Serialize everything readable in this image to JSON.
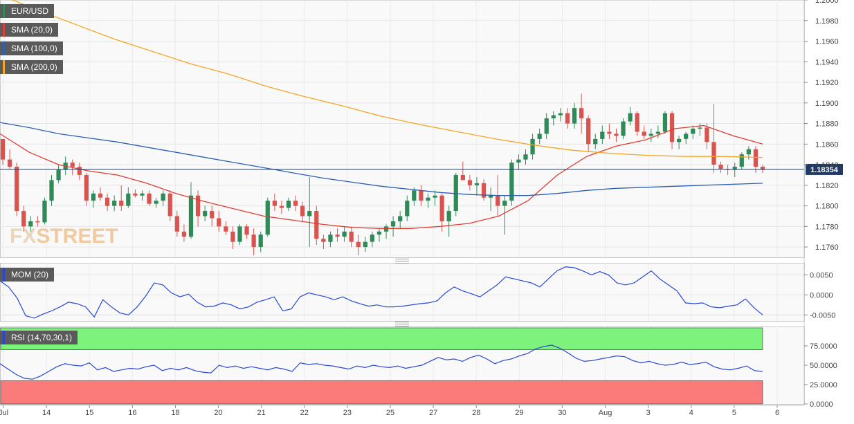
{
  "symbol": "EUR/USD",
  "current_price": "1.18354",
  "watermark": {
    "part1": "FX",
    "part2": "STREET"
  },
  "colors": {
    "sma20": "#e03c31",
    "sma100": "#2b5fb3",
    "sma200": "#f5a623",
    "candle_up": "#2e8b57",
    "candle_down": "#d9534f",
    "momentum": "#2747d6",
    "rsi_line": "#2747d6",
    "rsi_overbought_zone": "#7df27d",
    "rsi_oversold_zone": "#fb7a7a"
  },
  "legend": {
    "symbol_label": "EUR/USD",
    "sma20_label": "SMA (20,0)",
    "sma100_label": "SMA (100,0)",
    "sma200_label": "SMA (200,0)",
    "momentum_label": "MOM (20)",
    "rsi_label": "RSI (14,70,30,1)"
  },
  "price_axis": {
    "ticks": [
      "1.2000",
      "1.1980",
      "1.1960",
      "1.1940",
      "1.1920",
      "1.1900",
      "1.1880",
      "1.1860",
      "1.1840",
      "1.1820",
      "1.1800",
      "1.1780",
      "1.1760"
    ],
    "range": [
      1.175,
      1.2
    ]
  },
  "momentum_axis": {
    "ticks": [
      "0.0050",
      "0.0000",
      "-0.0050"
    ]
  },
  "rsi_axis": {
    "ticks": [
      "75.0000",
      "50.0000",
      "25.0000",
      "0.0000"
    ]
  },
  "date_axis": {
    "labels": [
      "Jul",
      "14",
      "15",
      "16",
      "18",
      "20",
      "21",
      "22",
      "23",
      "25",
      "27",
      "28",
      "29",
      "30",
      "Aug",
      "3",
      "4",
      "5",
      "6"
    ]
  },
  "chart_data": [
    {
      "type": "candlestick",
      "title": "EUR/USD",
      "ylim": [
        1.175,
        1.2
      ],
      "current_value": 1.18354,
      "series": [
        {
          "name": "SMA (20,0)",
          "values": [
            1.187,
            1.1852,
            1.184,
            1.1834,
            1.183,
            1.1822,
            1.1812,
            1.1804,
            1.1797,
            1.179,
            1.1786,
            1.1782,
            1.1779,
            1.1778,
            1.1778,
            1.178,
            1.1783,
            1.179,
            1.1805,
            1.183,
            1.1848,
            1.1858,
            1.1864,
            1.1875,
            1.1878,
            1.1868,
            1.186
          ]
        },
        {
          "name": "SMA (100,0)",
          "values": [
            1.1881,
            1.1876,
            1.187,
            1.1866,
            1.1862,
            1.1857,
            1.1852,
            1.1847,
            1.1842,
            1.1837,
            1.1832,
            1.1827,
            1.1823,
            1.1819,
            1.1816,
            1.1813,
            1.1811,
            1.181,
            1.181,
            1.1812,
            1.1815,
            1.1817,
            1.1818,
            1.1819,
            1.182,
            1.1821,
            1.1822
          ]
        },
        {
          "name": "SMA (200,0)",
          "values": [
            1.2005,
            1.199,
            1.1976,
            1.1962,
            1.195,
            1.1938,
            1.1928,
            1.1916,
            1.1906,
            1.1897,
            1.1887,
            1.1879,
            1.1872,
            1.1865,
            1.1859,
            1.1854,
            1.1851,
            1.1849,
            1.1848,
            1.1848,
            1.1847
          ]
        }
      ],
      "candles": [
        [
          1.1865,
          1.1865,
          1.184,
          1.1845
        ],
        [
          1.1845,
          1.1855,
          1.1835,
          1.1838
        ],
        [
          1.1838,
          1.1842,
          1.179,
          1.1795
        ],
        [
          1.1795,
          1.18,
          1.1775,
          1.178
        ],
        [
          1.178,
          1.179,
          1.1775,
          1.1785
        ],
        [
          1.1785,
          1.179,
          1.178,
          1.1784
        ],
        [
          1.1784,
          1.1808,
          1.1782,
          1.1805
        ],
        [
          1.1805,
          1.183,
          1.18,
          1.1825
        ],
        [
          1.1825,
          1.184,
          1.1822,
          1.1835
        ],
        [
          1.1835,
          1.1848,
          1.183,
          1.1842
        ],
        [
          1.1842,
          1.1845,
          1.183,
          1.1838
        ],
        [
          1.1838,
          1.1842,
          1.1825,
          1.183
        ],
        [
          1.183,
          1.1832,
          1.18,
          1.1805
        ],
        [
          1.1805,
          1.1815,
          1.1798,
          1.1812
        ],
        [
          1.1812,
          1.1818,
          1.1805,
          1.1808
        ],
        [
          1.1808,
          1.1812,
          1.1795,
          1.18
        ],
        [
          1.18,
          1.181,
          1.1795,
          1.1805
        ],
        [
          1.1805,
          1.182,
          1.1795,
          1.18
        ],
        [
          1.18,
          1.1818,
          1.1798,
          1.1812
        ],
        [
          1.1812,
          1.1816,
          1.1808,
          1.181
        ],
        [
          1.181,
          1.1815,
          1.1805,
          1.1812
        ],
        [
          1.1812,
          1.1815,
          1.18,
          1.1802
        ],
        [
          1.1802,
          1.1808,
          1.1798,
          1.1805
        ],
        [
          1.1805,
          1.1815,
          1.18,
          1.1812
        ],
        [
          1.1812,
          1.1815,
          1.1785,
          1.179
        ],
        [
          1.179,
          1.1795,
          1.177,
          1.1775
        ],
        [
          1.1775,
          1.1782,
          1.1765,
          1.177
        ],
        [
          1.177,
          1.1823,
          1.1768,
          1.181
        ],
        [
          1.181,
          1.1815,
          1.178,
          1.179
        ],
        [
          1.179,
          1.18,
          1.1785,
          1.1795
        ],
        [
          1.1795,
          1.18,
          1.178,
          1.1788
        ],
        [
          1.1788,
          1.1795,
          1.1775,
          1.178
        ],
        [
          1.178,
          1.1785,
          1.1772,
          1.1775
        ],
        [
          1.1775,
          1.178,
          1.1758,
          1.1765
        ],
        [
          1.1765,
          1.1782,
          1.1762,
          1.178
        ],
        [
          1.178,
          1.1782,
          1.1768,
          1.1772
        ],
        [
          1.1772,
          1.1778,
          1.1752,
          1.176
        ],
        [
          1.176,
          1.1775,
          1.1755,
          1.1772
        ],
        [
          1.1772,
          1.1808,
          1.177,
          1.1805
        ],
        [
          1.1805,
          1.1812,
          1.1795,
          1.18
        ],
        [
          1.18,
          1.1805,
          1.1792,
          1.1798
        ],
        [
          1.1798,
          1.1808,
          1.1795,
          1.1805
        ],
        [
          1.1805,
          1.181,
          1.1795,
          1.18
        ],
        [
          1.18,
          1.1804,
          1.1785,
          1.179
        ],
        [
          1.179,
          1.1828,
          1.176,
          1.1795
        ],
        [
          1.1795,
          1.18,
          1.1762,
          1.1768
        ],
        [
          1.1768,
          1.1772,
          1.1758,
          1.1765
        ],
        [
          1.1765,
          1.1775,
          1.176,
          1.1772
        ],
        [
          1.1772,
          1.1778,
          1.1765,
          1.177
        ],
        [
          1.177,
          1.178,
          1.1765,
          1.1775
        ],
        [
          1.1775,
          1.178,
          1.176,
          1.1765
        ],
        [
          1.1765,
          1.1772,
          1.1752,
          1.176
        ],
        [
          1.176,
          1.177,
          1.1755,
          1.1765
        ],
        [
          1.1765,
          1.1775,
          1.176,
          1.1772
        ],
        [
          1.1772,
          1.1778,
          1.1765,
          1.1775
        ],
        [
          1.1775,
          1.1782,
          1.1768,
          1.178
        ],
        [
          1.178,
          1.179,
          1.177,
          1.1785
        ],
        [
          1.1785,
          1.1795,
          1.1778,
          1.179
        ],
        [
          1.179,
          1.181,
          1.1785,
          1.1805
        ],
        [
          1.1805,
          1.1818,
          1.18,
          1.1815
        ],
        [
          1.1815,
          1.182,
          1.18,
          1.1805
        ],
        [
          1.1805,
          1.1812,
          1.1798,
          1.1808
        ],
        [
          1.1808,
          1.1815,
          1.18,
          1.181
        ],
        [
          1.181,
          1.1812,
          1.1775,
          1.1785
        ],
        [
          1.1785,
          1.18,
          1.177,
          1.1795
        ],
        [
          1.1795,
          1.1832,
          1.179,
          1.183
        ],
        [
          1.183,
          1.1843,
          1.1825,
          1.1825
        ],
        [
          1.1825,
          1.183,
          1.1815,
          1.182
        ],
        [
          1.182,
          1.1828,
          1.181,
          1.1822
        ],
        [
          1.1822,
          1.1826,
          1.1805,
          1.1808
        ],
        [
          1.1808,
          1.1818,
          1.1795,
          1.181
        ],
        [
          1.181,
          1.183,
          1.179,
          1.18
        ],
        [
          1.18,
          1.181,
          1.1772,
          1.1805
        ],
        [
          1.1805,
          1.1845,
          1.18,
          1.1842
        ],
        [
          1.1842,
          1.185,
          1.1835,
          1.1845
        ],
        [
          1.1845,
          1.1855,
          1.184,
          1.185
        ],
        [
          1.185,
          1.187,
          1.1845,
          1.1865
        ],
        [
          1.1865,
          1.1875,
          1.186,
          1.187
        ],
        [
          1.187,
          1.189,
          1.1865,
          1.1885
        ],
        [
          1.1885,
          1.1892,
          1.1878,
          1.1888
        ],
        [
          1.1888,
          1.1895,
          1.1882,
          1.189
        ],
        [
          1.189,
          1.1895,
          1.1875,
          1.188
        ],
        [
          1.188,
          1.19,
          1.1875,
          1.1895
        ],
        [
          1.1895,
          1.1909,
          1.187,
          1.1885
        ],
        [
          1.1885,
          1.1888,
          1.1852,
          1.186
        ],
        [
          1.186,
          1.187,
          1.1855,
          1.1865
        ],
        [
          1.1865,
          1.1878,
          1.186,
          1.1872
        ],
        [
          1.1872,
          1.188,
          1.1865,
          1.187
        ],
        [
          1.187,
          1.1875,
          1.1862,
          1.1868
        ],
        [
          1.1868,
          1.1885,
          1.1865,
          1.1882
        ],
        [
          1.1882,
          1.1896,
          1.1878,
          1.189
        ],
        [
          1.189,
          1.1892,
          1.1868,
          1.1872
        ],
        [
          1.1872,
          1.1878,
          1.1865,
          1.1868
        ],
        [
          1.1868,
          1.1875,
          1.1862,
          1.187
        ],
        [
          1.187,
          1.1878,
          1.1866,
          1.1872
        ],
        [
          1.1872,
          1.1892,
          1.187,
          1.189
        ],
        [
          1.189,
          1.1892,
          1.1855,
          1.1862
        ],
        [
          1.1862,
          1.1868,
          1.1855,
          1.1865
        ],
        [
          1.1865,
          1.1872,
          1.186,
          1.187
        ],
        [
          1.187,
          1.1878,
          1.1865,
          1.1875
        ],
        [
          1.1875,
          1.188,
          1.1868,
          1.1876
        ],
        [
          1.1876,
          1.188,
          1.1855,
          1.1862
        ],
        [
          1.1862,
          1.1899,
          1.1832,
          1.184
        ],
        [
          1.184,
          1.1843,
          1.1832,
          1.1836
        ],
        [
          1.1836,
          1.184,
          1.183,
          1.1835
        ],
        [
          1.1835,
          1.1842,
          1.1828,
          1.1838
        ],
        [
          1.1838,
          1.1852,
          1.1835,
          1.185
        ],
        [
          1.185,
          1.1858,
          1.1845,
          1.1855
        ],
        [
          1.1855,
          1.1858,
          1.1832,
          1.1838
        ],
        [
          1.1838,
          1.184,
          1.1832,
          1.1835
        ]
      ]
    },
    {
      "type": "line",
      "title": "MOM (20)",
      "ylim": [
        -0.0065,
        0.008
      ],
      "yticks": [
        0.005,
        0.0,
        -0.005
      ],
      "series": [
        {
          "name": "MOM (20)",
          "values": [
            0.0035,
            0.002,
            -0.0008,
            -0.0052,
            -0.0058,
            -0.0048,
            -0.004,
            -0.003,
            -0.0018,
            -0.0022,
            -0.003,
            -0.0055,
            -0.0012,
            -0.003,
            -0.0045,
            -0.005,
            -0.003,
            -0.0003,
            0.003,
            0.0025,
            0.0005,
            -0.0005,
            0.0002,
            -0.0018,
            -0.003,
            -0.0028,
            -0.002,
            -0.0025,
            -0.0035,
            -0.003,
            -0.0018,
            -0.0012,
            -0.0005,
            -0.004,
            -0.0035,
            -0.0005,
            0.0005,
            0.0,
            -0.0005,
            -0.0012,
            -0.0005,
            -0.0015,
            -0.0022,
            -0.0028,
            -0.0025,
            -0.003,
            -0.003,
            -0.0028,
            -0.0025,
            -0.0022,
            -0.002,
            -0.0015,
            0.0005,
            0.002,
            0.001,
            0.0003,
            -0.0005,
            0.001,
            0.0025,
            0.0045,
            0.004,
            0.0035,
            0.003,
            0.002,
            0.004,
            0.006,
            0.007,
            0.0068,
            0.006,
            0.005,
            0.0058,
            0.005,
            0.003,
            0.0025,
            0.003,
            0.0045,
            0.006,
            0.004,
            0.0025,
            0.001,
            -0.002,
            -0.0022,
            -0.002,
            -0.003,
            -0.0032,
            -0.0028,
            -0.0025,
            -0.001,
            -0.0032,
            -0.005
          ]
        }
      ]
    },
    {
      "type": "line",
      "title": "RSI (14,70,30,1)",
      "ylim": [
        0,
        100
      ],
      "overbought": 70,
      "oversold": 30,
      "yticks": [
        75,
        50,
        25,
        0
      ],
      "series": [
        {
          "name": "RSI (14,70,30,1)",
          "values": [
            52,
            45,
            38,
            33,
            32,
            36,
            42,
            48,
            52,
            50,
            49,
            53,
            44,
            47,
            42,
            44,
            46,
            45,
            48,
            50,
            43,
            46,
            44,
            47,
            43,
            41,
            40,
            50,
            47,
            49,
            46,
            48,
            46,
            44,
            47,
            45,
            42,
            53,
            51,
            52,
            50,
            49,
            47,
            45,
            49,
            47,
            50,
            48,
            47,
            49,
            46,
            48,
            50,
            55,
            60,
            57,
            58,
            55,
            60,
            63,
            58,
            52,
            56,
            58,
            62,
            65,
            71,
            74,
            76,
            72,
            66,
            59,
            55,
            56,
            58,
            60,
            62,
            61,
            56,
            53,
            55,
            52,
            50,
            51,
            54,
            51,
            52,
            54,
            48,
            45,
            44,
            46,
            49,
            43,
            42
          ]
        }
      ]
    }
  ]
}
